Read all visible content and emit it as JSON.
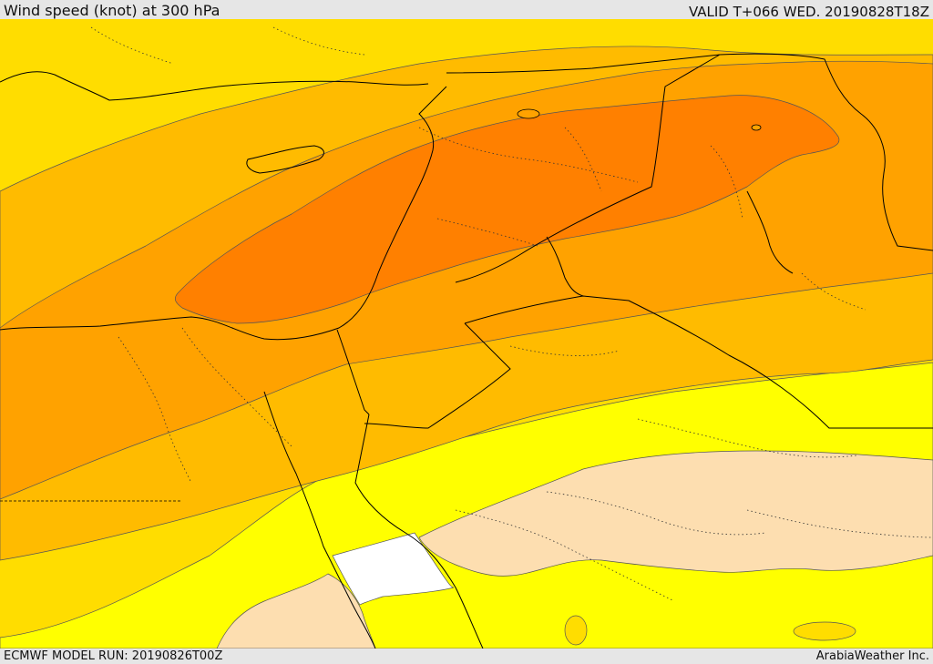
{
  "header": {
    "title": "Wind speed (knot) at 300 hPa",
    "valid": "VALID T+066 WED. 20190828T18Z"
  },
  "footer": {
    "model_run": "ECMWF MODEL RUN: 20190826T00Z",
    "credit": "ArabiaWeather Inc."
  },
  "map": {
    "variable": "wind speed",
    "units": "knot",
    "level_hpa": 300,
    "shading_colors": [
      "#ffffff",
      "#fdddb0",
      "#ffff00",
      "#ffdd00",
      "#ffbb00",
      "#ffa200",
      "#ff8000"
    ],
    "boundary_color": "#000000",
    "contour_color": "#555555"
  }
}
